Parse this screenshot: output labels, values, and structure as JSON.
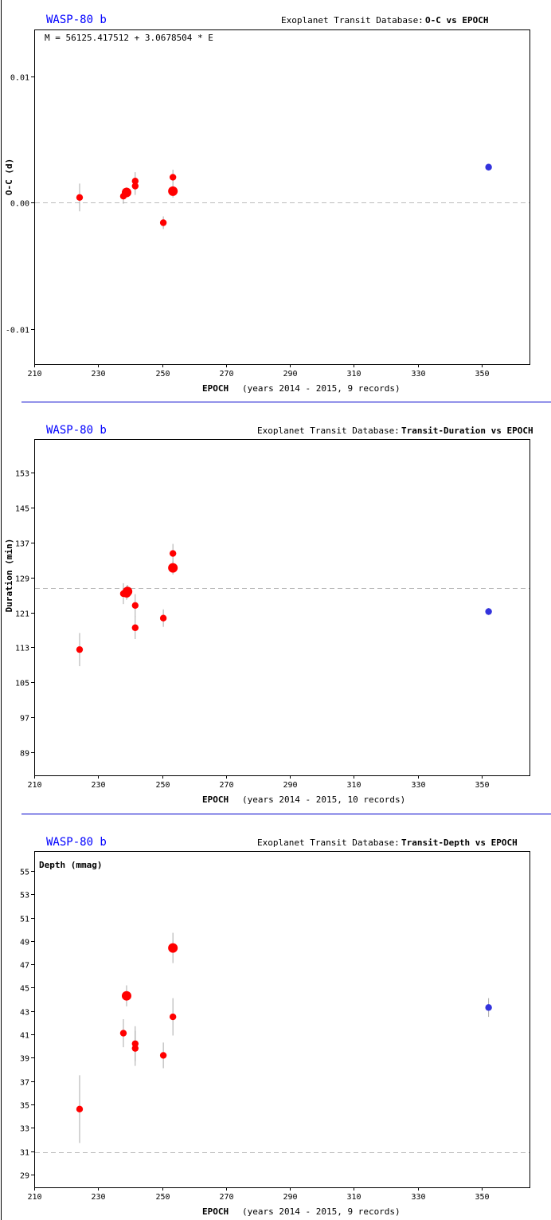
{
  "colors": {
    "data_point": "#ff0000",
    "highlight_point": "#3333dd",
    "error_bar": "#aaaaaa",
    "reference_line": "#bbbbbb",
    "separator": "#0000cc",
    "planet_title": "#0000ff"
  },
  "chart_data": [
    {
      "type": "scatter",
      "planet": "WASP-80 b",
      "database_label": "Exoplanet Transit Database:",
      "title": "O-C vs EPOCH",
      "formula": "M = 56125.417512 + 3.0678504 * E",
      "ylabel": "O-C (d)",
      "xlabel": "EPOCH",
      "xlabel_note": "(years 2014 - 2015, 9 records)",
      "xlim": [
        210,
        365
      ],
      "ylim": [
        -0.0128,
        0.0137
      ],
      "xticks": [
        "210",
        "230",
        "250",
        "270",
        "290",
        "310",
        "330",
        "350"
      ],
      "yticks": [
        "0.01",
        "0.00",
        "-0.01"
      ],
      "reference_line": 0.0,
      "points": [
        {
          "x": 224.2,
          "y": 0.0004,
          "err": 0.0011,
          "large": false,
          "highlight": false
        },
        {
          "x": 237.9,
          "y": 0.0005,
          "err": 0.0006,
          "large": false,
          "highlight": false
        },
        {
          "x": 238.9,
          "y": 0.0008,
          "err": 0.0004,
          "large": true,
          "highlight": false
        },
        {
          "x": 241.6,
          "y": 0.0017,
          "err": 0.0007,
          "large": false,
          "highlight": false
        },
        {
          "x": 241.6,
          "y": 0.0013,
          "err": 0.0007,
          "large": false,
          "highlight": false
        },
        {
          "x": 250.4,
          "y": -0.0016,
          "err": 0.0005,
          "large": false,
          "highlight": false
        },
        {
          "x": 253.4,
          "y": 0.002,
          "err": 0.0006,
          "large": false,
          "highlight": false
        },
        {
          "x": 253.4,
          "y": 0.0009,
          "err": 0.0005,
          "large": true,
          "highlight": false
        },
        {
          "x": 352.2,
          "y": 0.0028,
          "err": 0.0002,
          "large": false,
          "highlight": true
        }
      ]
    },
    {
      "type": "scatter",
      "planet": "WASP-80 b",
      "database_label": "Exoplanet Transit Database:",
      "title": "Transit-Duration vs EPOCH",
      "ylabel": "Duration (min)",
      "xlabel": "EPOCH",
      "xlabel_note": "(years 2014 - 2015, 10 records)",
      "xlim": [
        210,
        365
      ],
      "ylim": [
        83.7,
        160.7
      ],
      "xticks": [
        "210",
        "230",
        "250",
        "270",
        "290",
        "310",
        "330",
        "350"
      ],
      "yticks": [
        "153",
        "145",
        "137",
        "129",
        "121",
        "113",
        "105",
        "97",
        "89"
      ],
      "reference_line": 126.6,
      "points": [
        {
          "x": 224.2,
          "y": 112.5,
          "err": 3.8,
          "large": false,
          "highlight": false
        },
        {
          "x": 237.9,
          "y": 125.3,
          "err": 2.4,
          "large": false,
          "highlight": false
        },
        {
          "x": 238.9,
          "y": 125.5,
          "err": 1.6,
          "large": true,
          "highlight": false
        },
        {
          "x": 239.2,
          "y": 125.8,
          "err": 1.5,
          "large": true,
          "highlight": false
        },
        {
          "x": 241.6,
          "y": 122.6,
          "err": 2.6,
          "large": false,
          "highlight": false
        },
        {
          "x": 241.6,
          "y": 117.5,
          "err": 2.6,
          "large": false,
          "highlight": false
        },
        {
          "x": 250.4,
          "y": 119.7,
          "err": 2.0,
          "large": false,
          "highlight": false
        },
        {
          "x": 253.4,
          "y": 134.5,
          "err": 2.2,
          "large": false,
          "highlight": false
        },
        {
          "x": 253.4,
          "y": 131.2,
          "err": 1.5,
          "large": true,
          "highlight": false
        },
        {
          "x": 352.2,
          "y": 121.2,
          "err": 0.8,
          "large": false,
          "highlight": true
        }
      ]
    },
    {
      "type": "scatter",
      "planet": "WASP-80 b",
      "database_label": "Exoplanet Transit Database:",
      "title": "Transit-Depth vs EPOCH",
      "ylabel": "Depth (mmag)",
      "xlabel": "EPOCH",
      "xlabel_note": "(years 2014 - 2015, 9 records)",
      "xlim": [
        210,
        365
      ],
      "ylim": [
        27.9,
        56.7
      ],
      "xticks": [
        "210",
        "230",
        "250",
        "270",
        "290",
        "310",
        "330",
        "350"
      ],
      "yticks": [
        "55",
        "53",
        "51",
        "49",
        "47",
        "45",
        "43",
        "41",
        "39",
        "37",
        "35",
        "33",
        "31",
        "29"
      ],
      "reference_line": 30.9,
      "points": [
        {
          "x": 224.2,
          "y": 34.6,
          "err": 2.9,
          "large": false,
          "highlight": false
        },
        {
          "x": 237.9,
          "y": 41.1,
          "err": 1.2,
          "large": false,
          "highlight": false
        },
        {
          "x": 238.9,
          "y": 44.3,
          "err": 0.9,
          "large": true,
          "highlight": false
        },
        {
          "x": 241.6,
          "y": 40.2,
          "err": 1.5,
          "large": false,
          "highlight": false
        },
        {
          "x": 241.6,
          "y": 39.8,
          "err": 1.5,
          "large": false,
          "highlight": false
        },
        {
          "x": 250.4,
          "y": 39.2,
          "err": 1.1,
          "large": false,
          "highlight": false
        },
        {
          "x": 253.4,
          "y": 42.5,
          "err": 1.6,
          "large": false,
          "highlight": false
        },
        {
          "x": 253.4,
          "y": 48.4,
          "err": 1.3,
          "large": true,
          "highlight": false
        },
        {
          "x": 352.2,
          "y": 43.3,
          "err": 0.8,
          "large": false,
          "highlight": true
        }
      ]
    }
  ]
}
